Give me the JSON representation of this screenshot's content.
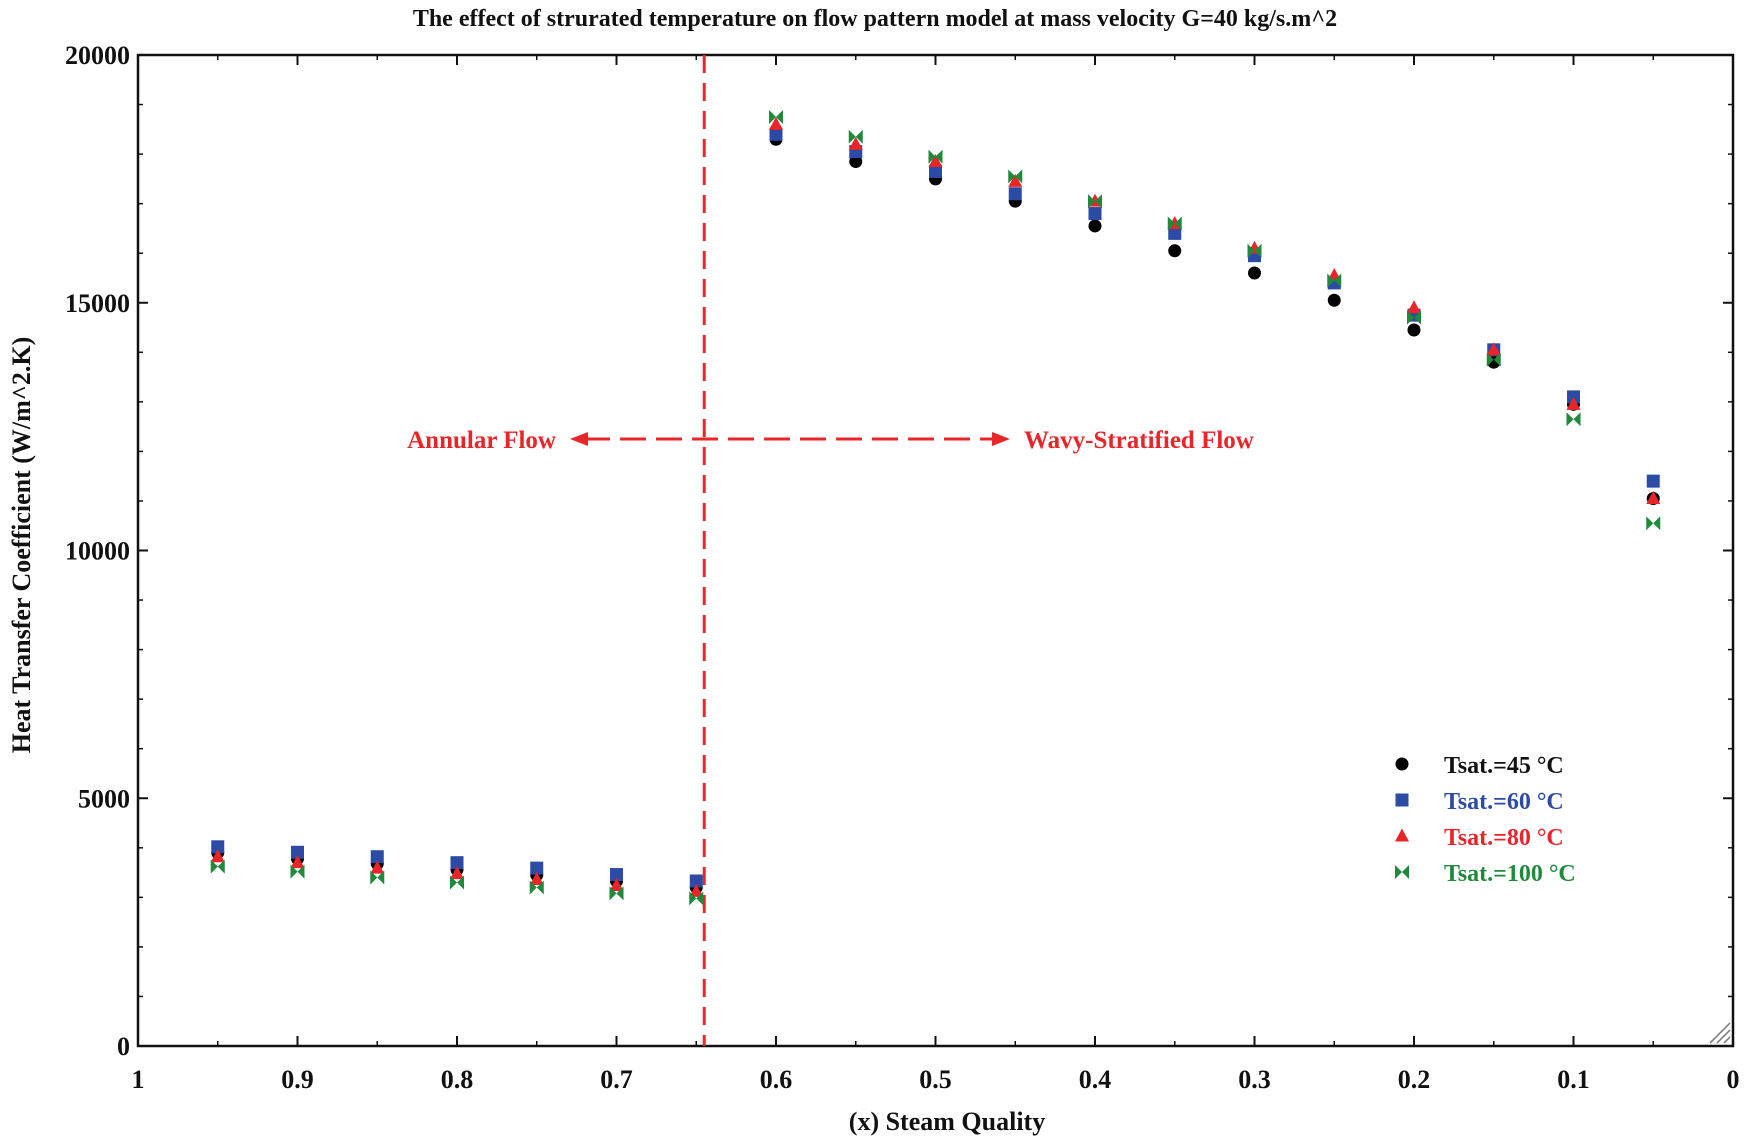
{
  "chart_data": {
    "type": "scatter",
    "title": "The effect of strurated temperature on flow pattern model at mass velocity G=40 kg/s.m^2",
    "xlabel": "(x) Steam Quality",
    "ylabel": "Heat Transfer Coefficient (W/m^2.K)",
    "xlim": [
      1,
      0
    ],
    "ylim": [
      0,
      20000
    ],
    "x_ticks": [
      "1",
      "0.9",
      "0.8",
      "0.7",
      "0.6",
      "0.5",
      "0.4",
      "0.3",
      "0.2",
      "0.1",
      "0"
    ],
    "y_ticks": [
      "0",
      "5000",
      "10000",
      "15000",
      "20000"
    ],
    "x": [
      0.95,
      0.9,
      0.85,
      0.8,
      0.75,
      0.7,
      0.65,
      0.6,
      0.55,
      0.5,
      0.45,
      0.4,
      0.35,
      0.3,
      0.25,
      0.2,
      0.15,
      0.1,
      0.05
    ],
    "series": [
      {
        "name": "Tsat.=45 °C",
        "color": "#000000",
        "marker": "circle",
        "values": [
          3900,
          3780,
          3680,
          3560,
          3450,
          3330,
          3200,
          18300,
          17850,
          17500,
          17050,
          16550,
          16050,
          15600,
          15050,
          14450,
          13800,
          12950,
          11050
        ]
      },
      {
        "name": "Tsat.=60 °C",
        "color": "#2b4ba5",
        "marker": "square",
        "values": [
          4020,
          3910,
          3820,
          3700,
          3590,
          3460,
          3330,
          18400,
          18050,
          17650,
          17200,
          16800,
          16400,
          15950,
          15400,
          14750,
          14050,
          13100,
          11400
        ]
      },
      {
        "name": "Tsat.=80 °C",
        "color": "#e8262a",
        "marker": "triangle",
        "values": [
          3820,
          3700,
          3590,
          3480,
          3360,
          3240,
          3120,
          18600,
          18200,
          17850,
          17450,
          17050,
          16600,
          16100,
          15550,
          14900,
          14050,
          12950,
          11050
        ]
      },
      {
        "name": "Tsat.=100 °C",
        "color": "#1e8a3a",
        "marker": "bowtie",
        "values": [
          3620,
          3520,
          3400,
          3300,
          3200,
          3080,
          2980,
          18750,
          18350,
          17950,
          17550,
          17050,
          16600,
          16050,
          15450,
          14700,
          13850,
          12650,
          10550
        ]
      }
    ],
    "annotations": {
      "left": "Annular Flow",
      "right": "Wavy-Stratified Flow",
      "boundary_x": 0.645,
      "arrow_y": 12250
    },
    "legend_position": "bottom-right"
  }
}
